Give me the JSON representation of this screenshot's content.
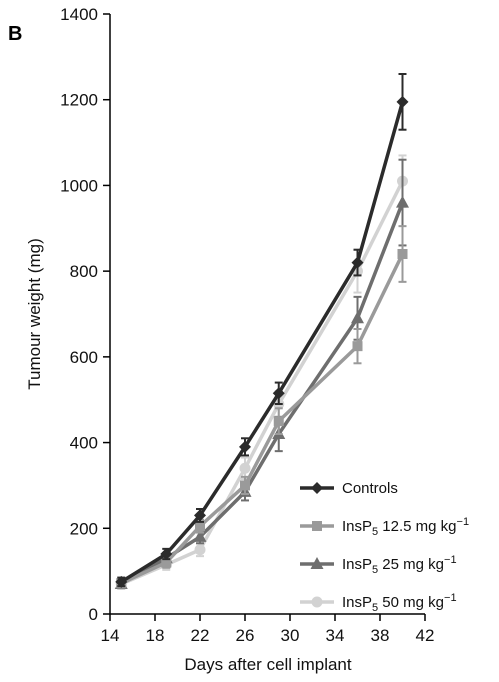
{
  "panel_label": "B",
  "chart_data": {
    "type": "line",
    "title": "",
    "xlabel": "Days after cell implant",
    "ylabel": "Tumour weight (mg)",
    "xlim": [
      14,
      42
    ],
    "ylim": [
      0,
      1400
    ],
    "xticks": [
      14,
      18,
      22,
      26,
      30,
      34,
      38,
      42
    ],
    "yticks": [
      0,
      200,
      400,
      600,
      800,
      1000,
      1200,
      1400
    ],
    "legend_position": "bottom-right",
    "series": [
      {
        "name": "Controls",
        "color": "#2b2b2b",
        "marker": "diamond",
        "x": [
          15,
          19,
          22,
          26,
          29,
          36,
          40
        ],
        "y": [
          75,
          140,
          230,
          390,
          515,
          820,
          1195
        ],
        "err": [
          10,
          12,
          15,
          20,
          25,
          30,
          65
        ]
      },
      {
        "name": "12.5 mg kg",
        "color": "#9a9a9a",
        "marker": "square",
        "x": [
          15,
          19,
          22,
          26,
          29,
          36,
          40
        ],
        "y": [
          72,
          120,
          205,
          300,
          450,
          625,
          840
        ],
        "err": [
          10,
          12,
          15,
          20,
          30,
          40,
          65
        ]
      },
      {
        "name": "25 mg kg",
        "color": "#6e6e6e",
        "marker": "triangle",
        "x": [
          15,
          19,
          22,
          26,
          29,
          36,
          40
        ],
        "y": [
          70,
          130,
          180,
          285,
          420,
          690,
          960
        ],
        "err": [
          10,
          12,
          15,
          20,
          40,
          50,
          100
        ]
      },
      {
        "name": "50 mg kg",
        "color": "#d2d2d2",
        "marker": "circle",
        "x": [
          15,
          19,
          22,
          26,
          29,
          36,
          40
        ],
        "y": [
          70,
          115,
          150,
          340,
          490,
          800,
          1010
        ],
        "err": [
          10,
          12,
          15,
          25,
          30,
          50,
          60
        ]
      }
    ],
    "legend": [
      {
        "prefix": "Controls",
        "sub": "",
        "suffix": "",
        "sup": ""
      },
      {
        "prefix": "InsP",
        "sub": "5",
        "suffix": " 12.5 mg kg",
        "sup": "−1"
      },
      {
        "prefix": "InsP",
        "sub": "5",
        "suffix": " 25 mg kg",
        "sup": "−1"
      },
      {
        "prefix": "InsP",
        "sub": "5",
        "suffix": " 50 mg kg",
        "sup": "−1"
      }
    ]
  }
}
